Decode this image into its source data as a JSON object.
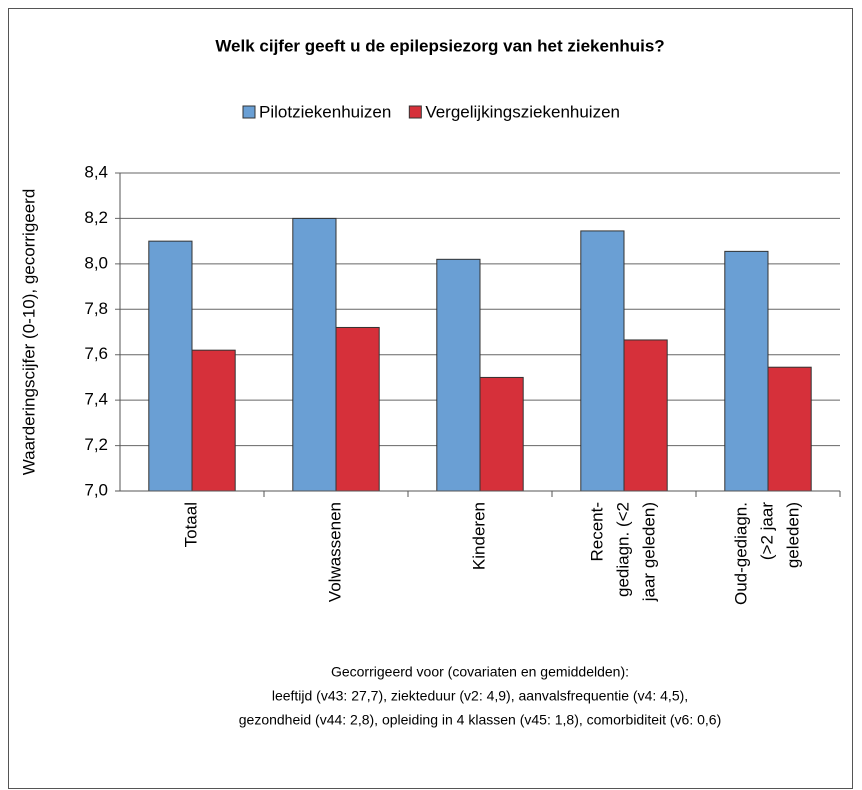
{
  "chart_data": {
    "type": "bar",
    "title": "Welk cijfer geeft u de epilepsiezorg van het ziekenhuis?",
    "ylabel": "Waarderingscijfer (0-10), gecorrigeerd",
    "categories": [
      [
        "Totaal"
      ],
      [
        "Volwassenen"
      ],
      [
        "Kinderen"
      ],
      [
        "Recent-",
        "gediagn. (<2",
        "jaar geleden)"
      ],
      [
        "Oud-gediagn.",
        "(>2 jaar",
        "geleden)"
      ]
    ],
    "series": [
      {
        "name": "Pilotziekenhuizen",
        "color": "#6a9fd4",
        "values": [
          8.1,
          8.2,
          8.02,
          8.145,
          8.055
        ]
      },
      {
        "name": "Vergelijkingsziekenhuizen",
        "color": "#d6303a",
        "values": [
          7.62,
          7.72,
          7.5,
          7.665,
          7.545
        ]
      }
    ],
    "ylim": [
      7.0,
      8.4
    ],
    "yticks": [
      {
        "value": 7.0,
        "label": "7,0"
      },
      {
        "value": 7.2,
        "label": "7,2"
      },
      {
        "value": 7.4,
        "label": "7,4"
      },
      {
        "value": 7.6,
        "label": "7,6"
      },
      {
        "value": 7.8,
        "label": "7,8"
      },
      {
        "value": 8.0,
        "label": "8,0"
      },
      {
        "value": 8.2,
        "label": "8,2"
      },
      {
        "value": 8.4,
        "label": "8,4"
      }
    ],
    "grid": true,
    "legend": "top",
    "note": [
      "Gecorrigeerd voor (covariaten en gemiddelden):",
      "leeftijd (v43: 27,7), ziekteduur (v2: 4,9), aanvalsfrequentie (v4: 4,5),",
      "gezondheid (v44: 2,8), opleiding in 4 klassen (v45: 1,8), comorbiditeit (v6: 0,6)"
    ]
  }
}
